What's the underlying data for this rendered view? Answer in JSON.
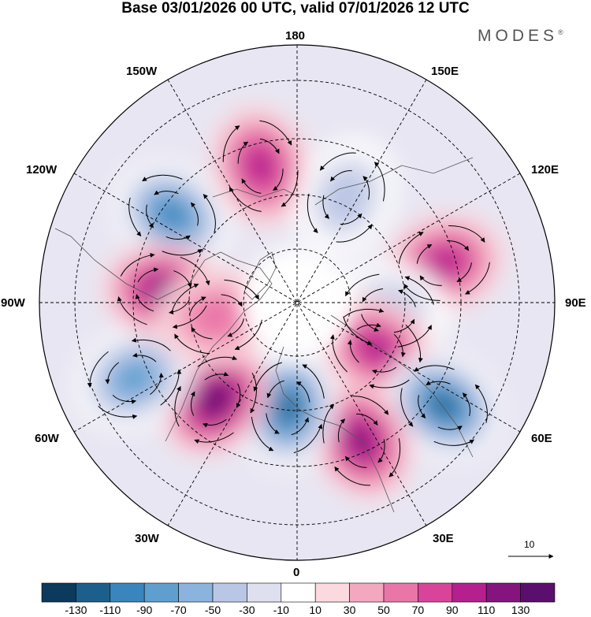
{
  "title": "Base 03/01/2026 00 UTC, valid 07/01/2026 12 UTC",
  "brand": "MODES",
  "brand_mark": "®",
  "longitude_labels": {
    "lon_180": "180",
    "lon_150w": "150W",
    "lon_150e": "150E",
    "lon_120w": "120W",
    "lon_120e": "120E",
    "lon_90w": "90W",
    "lon_90e": "90E",
    "lon_60w": "60W",
    "lon_60e": "60E",
    "lon_30w": "30W",
    "lon_30e": "30E",
    "lon_0": "0"
  },
  "vector_reference": "10",
  "colorbar": {
    "ticks": [
      "-130",
      "-110",
      "-90",
      "-70",
      "-50",
      "-30",
      "-10",
      "10",
      "30",
      "50",
      "70",
      "90",
      "110",
      "130"
    ],
    "colors": [
      "#0b3a5c",
      "#1d5f8c",
      "#3a85bd",
      "#5e9fd0",
      "#8ab3dd",
      "#b9c6e5",
      "#dedfef",
      "#ffffff",
      "#fad9df",
      "#f4a8c0",
      "#ea76a8",
      "#d9449a",
      "#b61f8e",
      "#86147f",
      "#5a0f6e"
    ]
  },
  "chart_data": {
    "type": "heatmap",
    "projection": "north polar stereographic",
    "title": "Base 03/01/2026 00 UTC, valid 07/01/2026 12 UTC",
    "colorbar_ticks": [
      -130,
      -110,
      -90,
      -70,
      -50,
      -30,
      -10,
      10,
      30,
      50,
      70,
      90,
      110,
      130
    ],
    "anomalies": [
      {
        "name": "pos-north-pacific",
        "lon": -165,
        "lat": 48,
        "value": 90
      },
      {
        "name": "neg-gulf-alaska",
        "lon": -125,
        "lat": 45,
        "value": -110
      },
      {
        "name": "neg-bering",
        "lon": 155,
        "lat": 55,
        "value": -50
      },
      {
        "name": "pos-siberia",
        "lon": 105,
        "lat": 45,
        "value": 90
      },
      {
        "name": "neg-central-siberia",
        "lon": 85,
        "lat": 62,
        "value": -50
      },
      {
        "name": "pos-western-siberia",
        "lon": 60,
        "lat": 62,
        "value": 90
      },
      {
        "name": "neg-caspian",
        "lon": 55,
        "lat": 38,
        "value": -130
      },
      {
        "name": "pos-eastern-europe",
        "lon": 25,
        "lat": 45,
        "value": 110
      },
      {
        "name": "neg-scandinavia",
        "lon": -5,
        "lat": 58,
        "value": -130
      },
      {
        "name": "pos-north-atlantic",
        "lon": -40,
        "lat": 52,
        "value": 130
      },
      {
        "name": "neg-eastern-us",
        "lon": -65,
        "lat": 38,
        "value": -90
      },
      {
        "name": "pos-canada",
        "lon": -95,
        "lat": 50,
        "value": 110
      },
      {
        "name": "pos-hudson",
        "lon": -80,
        "lat": 65,
        "value": 50
      }
    ]
  }
}
